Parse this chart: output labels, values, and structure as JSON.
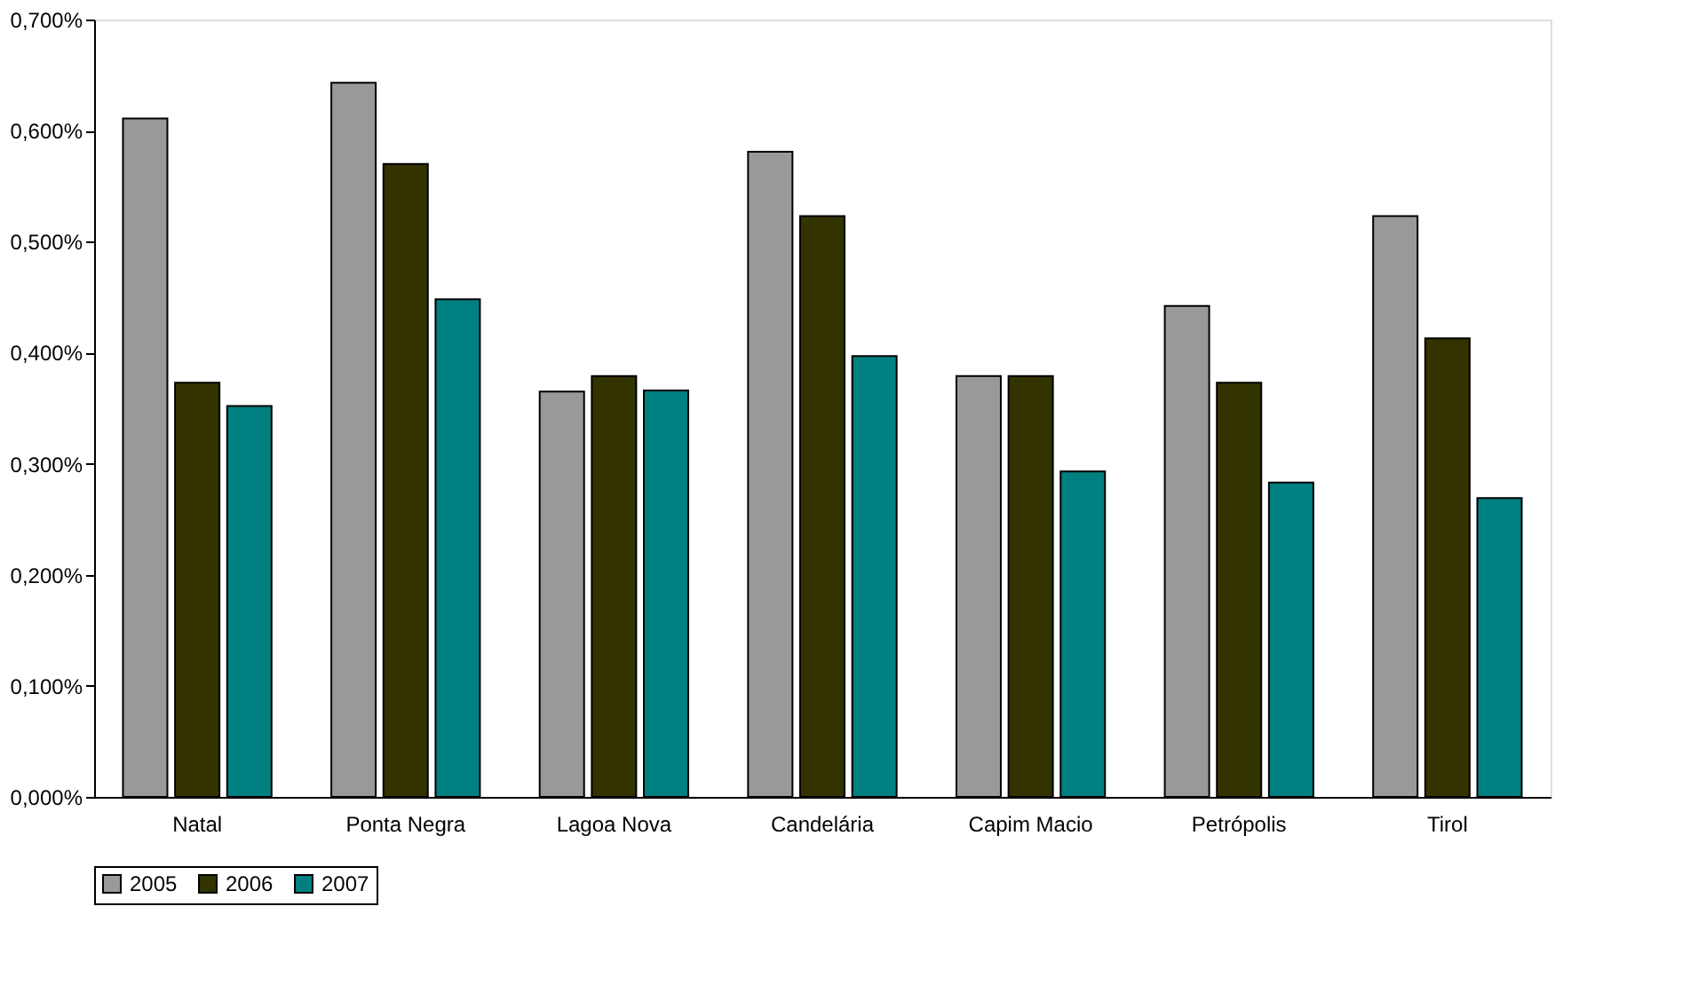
{
  "chart_data": {
    "type": "bar",
    "categories": [
      "Natal",
      "Ponta Negra",
      "Lagoa Nova",
      "Candelária",
      "Capim Macio",
      "Petrópolis",
      "Tirol"
    ],
    "series": [
      {
        "name": "2005",
        "color": "#999999",
        "values": [
          0.611,
          0.643,
          0.365,
          0.581,
          0.379,
          0.442,
          0.523
        ]
      },
      {
        "name": "2006",
        "color": "#333300",
        "values": [
          0.373,
          0.57,
          0.379,
          0.523,
          0.379,
          0.373,
          0.413
        ]
      },
      {
        "name": "2007",
        "color": "#008080",
        "values": [
          0.352,
          0.448,
          0.366,
          0.397,
          0.293,
          0.283,
          0.269
        ]
      }
    ],
    "ylim": [
      0,
      0.7
    ],
    "yticks": [
      {
        "value": 0,
        "label": "0,000%"
      },
      {
        "value": 0.1,
        "label": "0,100%"
      },
      {
        "value": 0.2,
        "label": "0,200%"
      },
      {
        "value": 0.3,
        "label": "0,300%"
      },
      {
        "value": 0.4,
        "label": "0,400%"
      },
      {
        "value": 0.5,
        "label": "0,500%"
      },
      {
        "value": 0.6,
        "label": "0,600%"
      },
      {
        "value": 0.7,
        "label": "0,700%"
      }
    ],
    "grid": false,
    "legend": "bottom"
  }
}
